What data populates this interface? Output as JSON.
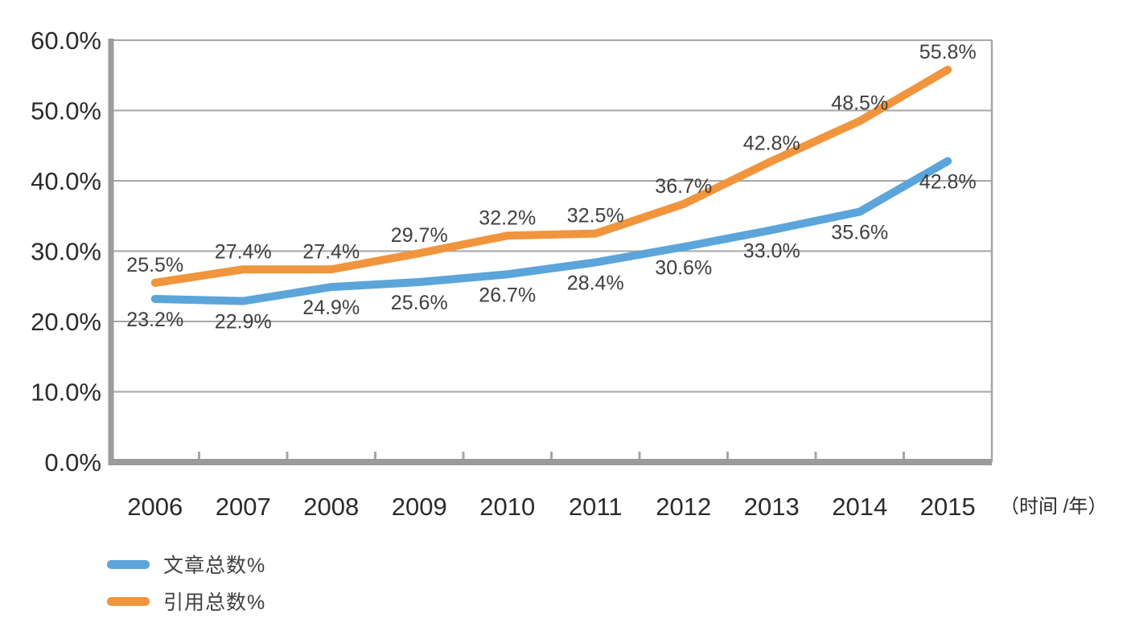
{
  "chart_data": {
    "type": "line",
    "x": [
      "2006",
      "2007",
      "2008",
      "2009",
      "2010",
      "2011",
      "2012",
      "2013",
      "2014",
      "2015"
    ],
    "series": [
      {
        "name": "文章总数%",
        "color": "#5BA5DA",
        "values": [
          23.2,
          22.9,
          24.9,
          25.6,
          26.7,
          28.4,
          30.6,
          33.0,
          35.6,
          42.8
        ],
        "point_labels": [
          "23.2%",
          "22.9%",
          "24.9%",
          "25.6%",
          "26.7%",
          "28.4%",
          "30.6%",
          "33.0%",
          "35.6%",
          "42.8%"
        ],
        "label_position": "below"
      },
      {
        "name": "引用总数%",
        "color": "#F0953E",
        "values": [
          25.5,
          27.4,
          27.4,
          29.7,
          32.2,
          32.5,
          36.7,
          42.8,
          48.5,
          55.8
        ],
        "point_labels": [
          "25.5%",
          "27.4%",
          "27.4%",
          "29.7%",
          "32.2%",
          "32.5%",
          "36.7%",
          "42.8%",
          "48.5%",
          "55.8%"
        ],
        "label_position": "above"
      }
    ],
    "title": "",
    "xlabel": "",
    "ylabel": "",
    "x_axis_unit_label": "（时间 /年）",
    "ylim": [
      0,
      60
    ],
    "y_tick_step": 10,
    "y_tick_labels": [
      "0.0%",
      "10.0%",
      "20.0%",
      "30.0%",
      "40.0%",
      "50.0%",
      "60.0%"
    ],
    "grid": true,
    "legend_position": "bottom-left"
  },
  "colors": {
    "gridline": "#a6a6a6",
    "axis": "#9b9b9b",
    "tick": "#a6a6a6",
    "axis_text": "#2b2b2b",
    "data_label_text": "#3f3f3f",
    "background": "#ffffff"
  }
}
